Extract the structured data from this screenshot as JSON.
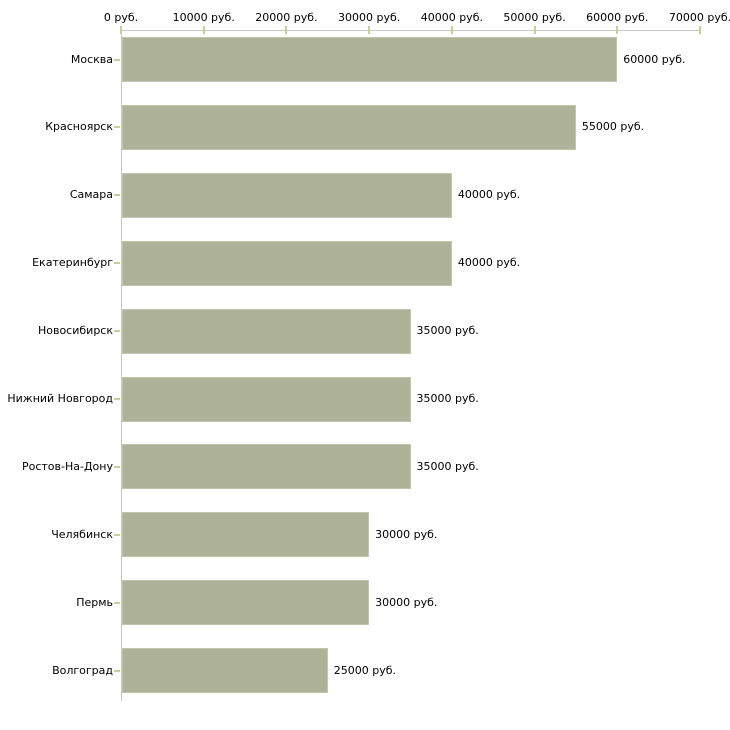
{
  "chart_data": {
    "type": "bar",
    "orientation": "horizontal",
    "title": "",
    "categories": [
      "Москва",
      "Красноярск",
      "Самара",
      "Екатеринбург",
      "Новосибирск",
      "Нижний Новгород",
      "Ростов-На-Дону",
      "Челябинск",
      "Пермь",
      "Волгоград"
    ],
    "values": [
      60000,
      55000,
      40000,
      40000,
      35000,
      35000,
      35000,
      30000,
      30000,
      25000
    ],
    "value_labels": [
      "60000 руб.",
      "55000 руб.",
      "40000 руб.",
      "40000 руб.",
      "35000 руб.",
      "35000 руб.",
      "35000 руб.",
      "30000 руб.",
      "30000 руб.",
      "25000 руб."
    ],
    "unit": "руб.",
    "x_ticks": [
      0,
      10000,
      20000,
      30000,
      40000,
      50000,
      60000,
      70000
    ],
    "x_tick_labels": [
      "0 руб.",
      "10000 руб.",
      "20000 руб.",
      "30000 руб.",
      "40000 руб.",
      "50000 руб.",
      "60000 руб.",
      "70000 руб."
    ],
    "xlim": [
      0,
      70000
    ],
    "xlabel": "",
    "ylabel": "",
    "grid": false,
    "legend": false,
    "colors": {
      "bar_fill": "#adb299",
      "bar_edge": "#c2c7ac",
      "axis_line": "#c6c6c6",
      "tick_mark": "#cccc9f",
      "text": "#000000",
      "background": "#ffffff"
    }
  }
}
